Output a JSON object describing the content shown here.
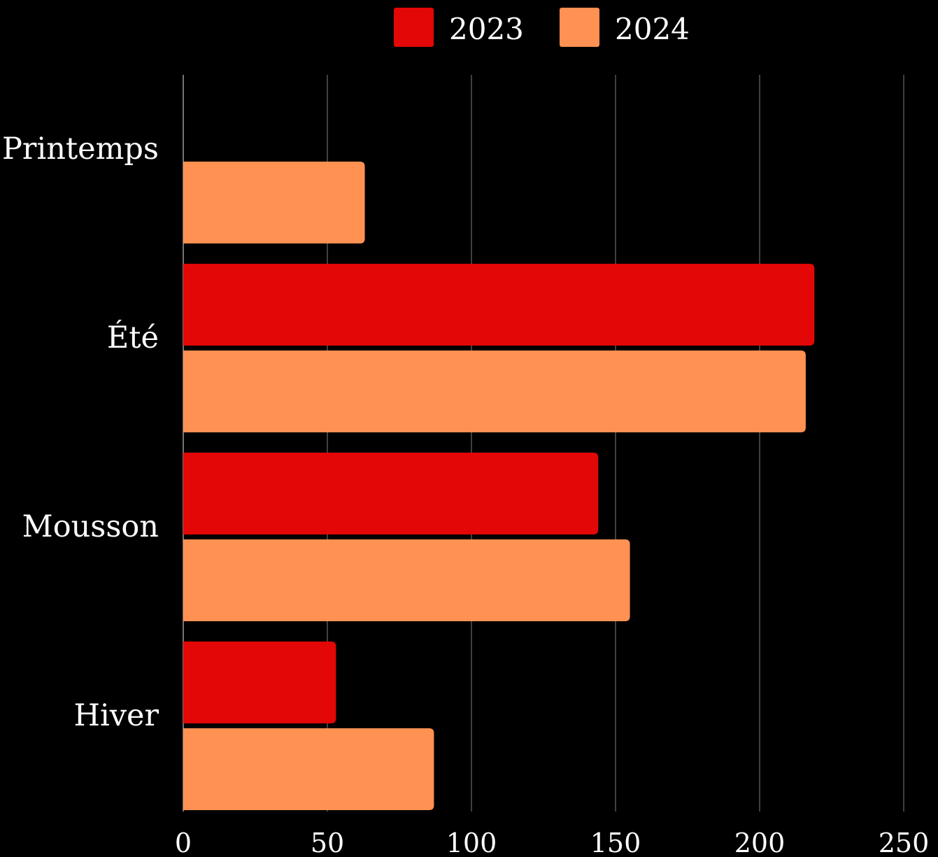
{
  "chart_data": {
    "type": "bar",
    "orientation": "horizontal",
    "categories": [
      "Printemps",
      "Été",
      "Mousson",
      "Hiver"
    ],
    "series": [
      {
        "name": "2023",
        "color": "#e30707",
        "values": [
          0,
          219,
          144,
          53
        ]
      },
      {
        "name": "2024",
        "color": "#ff9152",
        "values": [
          63,
          216,
          155,
          87
        ]
      }
    ],
    "xticks": [
      "0",
      "50",
      "100",
      "150",
      "200",
      "250"
    ],
    "xlim": [
      0,
      250
    ],
    "title": "",
    "xlabel": "",
    "ylabel": "",
    "grid": true,
    "legend_position": "top-center",
    "background": "#000000",
    "grid_color": "#555555"
  }
}
